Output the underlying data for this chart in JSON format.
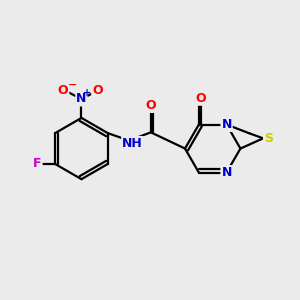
{
  "background_color": "#ebebeb",
  "bond_color": "#000000",
  "atom_colors": {
    "O": "#ff0000",
    "N": "#0000cc",
    "S": "#cccc00",
    "F": "#cc00cc",
    "C": "#000000"
  },
  "figsize": [
    3.0,
    3.0
  ],
  "dpi": 100,
  "lw": 1.6
}
